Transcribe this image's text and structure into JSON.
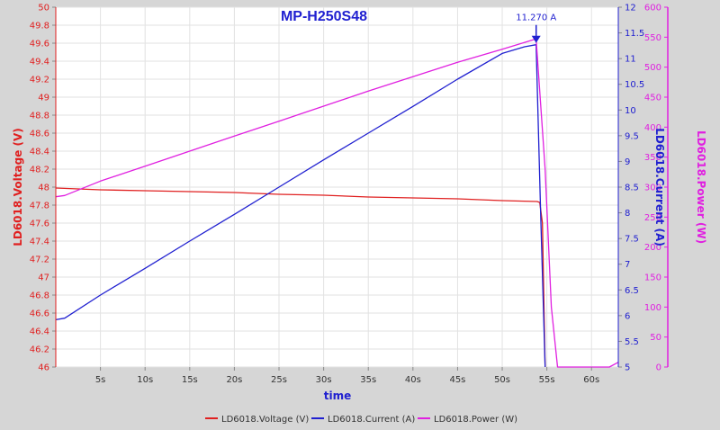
{
  "chart_data": {
    "type": "line",
    "title": "MP-H250S48",
    "xlabel": "time",
    "x_ticks": [
      "5s",
      "10s",
      "15s",
      "20s",
      "25s",
      "30s",
      "35s",
      "40s",
      "45s",
      "50s",
      "55s",
      "60s"
    ],
    "xlim": [
      0,
      63
    ],
    "axes": {
      "voltage": {
        "label": "LD6018.Voltage (V)",
        "ylim": [
          46,
          50
        ],
        "ticks": [
          "46",
          "46.2",
          "46.4",
          "46.6",
          "46.8",
          "47",
          "47.2",
          "47.4",
          "47.6",
          "47.8",
          "48",
          "48.2",
          "48.4",
          "48.6",
          "48.8",
          "49",
          "49.2",
          "49.4",
          "49.6",
          "49.8",
          "50"
        ],
        "color": "#e02020"
      },
      "current": {
        "label": "LD6018.Current (A)",
        "ylim": [
          5,
          12
        ],
        "ticks": [
          "5",
          "5.5",
          "6",
          "6.5",
          "7",
          "7.5",
          "8",
          "8.5",
          "9",
          "9.5",
          "10",
          "10.5",
          "11",
          "11.5",
          "12"
        ],
        "color": "#2020d0"
      },
      "power": {
        "label": "LD6018.Power (W)",
        "ylim": [
          0,
          600
        ],
        "ticks": [
          "0",
          "50",
          "100",
          "150",
          "200",
          "250",
          "300",
          "350",
          "400",
          "450",
          "500",
          "550",
          "600"
        ],
        "color": "#e020e0"
      }
    },
    "series": [
      {
        "name": "LD6018.Voltage (V)",
        "axis": "voltage",
        "color": "#e02020",
        "x": [
          0,
          5,
          10,
          15,
          20,
          25,
          30,
          35,
          40,
          45,
          50,
          53.9,
          54.2,
          54.5,
          54.8
        ],
        "y": [
          47.99,
          47.97,
          47.96,
          47.95,
          47.94,
          47.92,
          47.91,
          47.89,
          47.88,
          47.87,
          47.85,
          47.84,
          47.83,
          47.6,
          46.0
        ]
      },
      {
        "name": "LD6018.Current (A)",
        "axis": "current",
        "color": "#2020d0",
        "x": [
          0,
          1,
          5,
          10,
          15,
          20,
          25,
          30,
          35,
          40,
          45,
          50,
          52.5,
          53.8,
          54.3,
          54.8
        ],
        "y": [
          5.92,
          5.95,
          6.4,
          6.92,
          7.45,
          7.97,
          8.5,
          9.03,
          9.55,
          10.07,
          10.6,
          11.1,
          11.23,
          11.27,
          8.0,
          5.0
        ]
      },
      {
        "name": "LD6018.Power (W)",
        "axis": "power",
        "color": "#e020e0",
        "x": [
          0,
          1,
          5,
          10,
          15,
          20,
          25,
          30,
          35,
          40,
          45,
          50,
          53.8,
          54.8,
          55.5,
          56.2,
          62,
          63
        ],
        "y": [
          284,
          286,
          310,
          335,
          360,
          385,
          410,
          435,
          460,
          484,
          508,
          530,
          547,
          330,
          100,
          0,
          0,
          8
        ]
      }
    ],
    "annotation": {
      "text": "11.270 A",
      "x": 53.8,
      "y": 11.27,
      "axis": "current"
    },
    "grid": true,
    "legend": "bottom"
  }
}
